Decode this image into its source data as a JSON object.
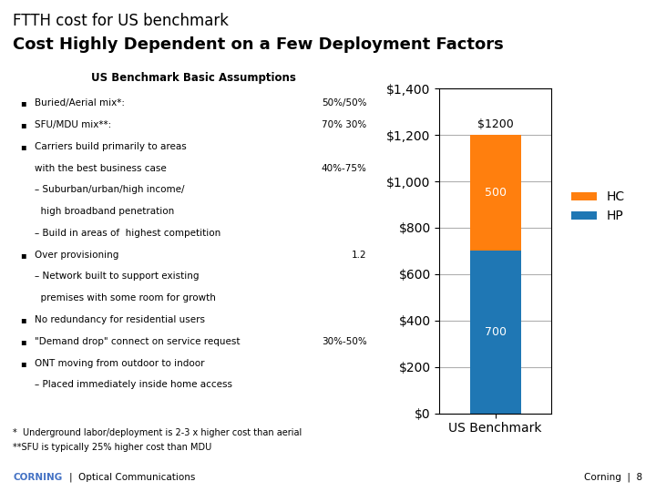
{
  "chart_data": {
    "type": "bar",
    "title": "FTTH cost for US benchmark",
    "subtitle": "Cost Highly Dependent on a Few Deployment Factors",
    "categories": [
      "US Benchmark"
    ],
    "stacked": true,
    "series": [
      {
        "name": "HP",
        "values": [
          700
        ]
      },
      {
        "name": "HC",
        "values": [
          500
        ]
      }
    ],
    "data_labels": true,
    "totals": [
      1200
    ],
    "total_labels": [
      "$1200"
    ],
    "ylim": [
      0,
      1400
    ],
    "yticks": [
      {
        "value": 0,
        "label": "$0"
      },
      {
        "value": 200,
        "label": "$200"
      },
      {
        "value": 400,
        "label": "$400"
      },
      {
        "value": 600,
        "label": "$600"
      },
      {
        "value": 800,
        "label": "$800"
      },
      {
        "value": 1000,
        "label": "$1,000"
      },
      {
        "value": 1200,
        "label": "$1,200"
      },
      {
        "value": 1400,
        "label": "$1,400"
      }
    ],
    "grid": true,
    "legend": "upper left",
    "table": {
      "header": "US Benchmark Basic Assumptions",
      "rows": [
        {
          "bullet": "▪",
          "text": "Buried/Aerial mix*:",
          "value": "50%/50%"
        },
        {
          "bullet": "▪",
          "text": "SFU/MDU mix**:",
          "value": "70% 30%"
        },
        {
          "bullet": "▪",
          "text": "Carriers build primarily to areas"
        },
        {
          "text": "with the best business case",
          "value": "40%-75%"
        },
        {
          "text": "– Suburban/urban/high income/"
        },
        {
          "text": "  high broadband penetration"
        },
        {
          "text": "– Build in areas of  highest competition"
        },
        {
          "bullet": "▪",
          "text": "Over provisioning",
          "value": "1.2"
        },
        {
          "text": "– Network built to support existing"
        },
        {
          "text": "  premises with some room for growth"
        },
        {
          "bullet": "▪",
          "text": "No redundancy for residential users"
        },
        {
          "bullet": "▪",
          "text": "\"Demand drop\" connect on service request",
          "value": "30%-50%"
        },
        {
          "bullet": "▪",
          "text": "ONT moving from outdoor to indoor"
        },
        {
          "text": "– Placed immediately inside home access"
        }
      ]
    },
    "footnotes": [
      "*  Underground labor/deployment is 2-3 x higher cost than aerial",
      "**SFU is typically 25% higher cost than MDU"
    ],
    "footer": {
      "left": [
        "CORNING",
        "|",
        "Optical Communications"
      ],
      "left_color": "#4472c4",
      "right": "Corning  |  8"
    }
  }
}
